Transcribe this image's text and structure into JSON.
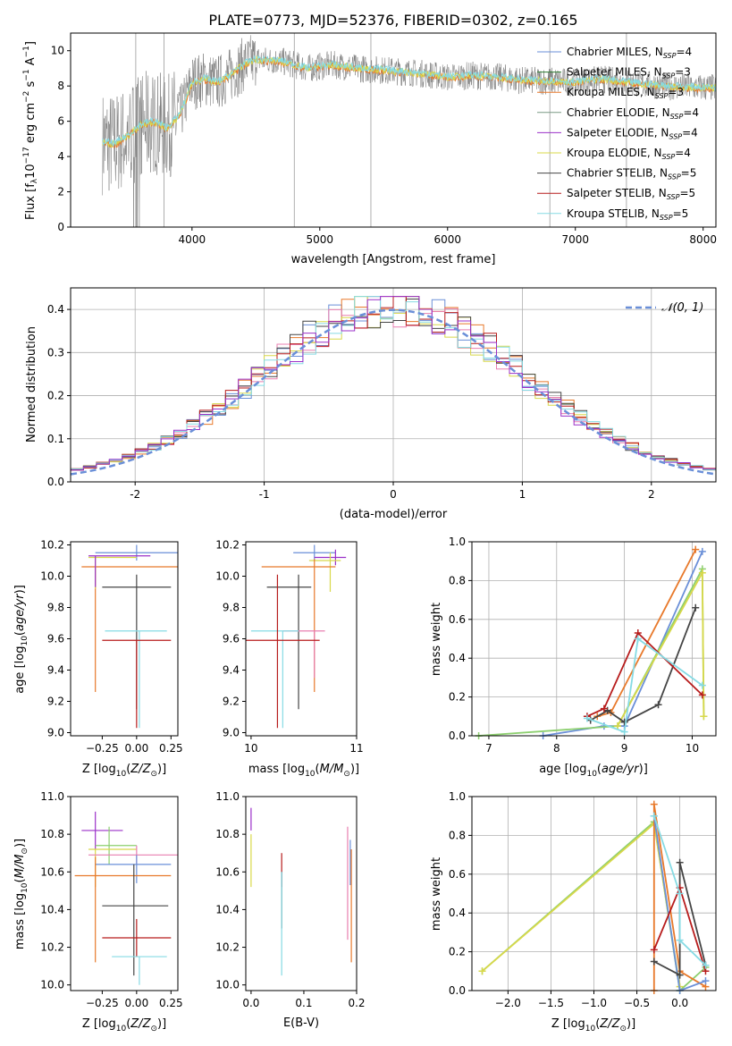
{
  "colors": {
    "chabrier_miles": "#6a8fd8",
    "salpeter_miles": "#2e7d32",
    "kroupa_miles": "#e8792b",
    "chabrier_elodie": "#7b9a86",
    "salpeter_elodie": "#9b30c8",
    "kroupa_elodie": "#d8d84a",
    "chabrier_stelib": "#454545",
    "salpeter_stelib": "#b71c1c",
    "kroupa_stelib": "#86dbe4",
    "data_gray": "#7a7a7a",
    "normal_curve": "#6a8fd8",
    "pink": "#e87fb0",
    "green_light": "#8ccf6e"
  },
  "chart_data": [
    {
      "id": "spectrum",
      "type": "line",
      "title": "PLATE=0773, MJD=52376, FIBERID=0302, z=0.165",
      "xlabel": "wavelength [Angstrom, rest frame]",
      "ylabel": "Flux [f$_\\lambda$10$^{-17}$ erg cm$^{-2}$ s$^{-1}$ A$^{-1}$]",
      "ylabel_parts": [
        "Flux [f",
        "λ",
        "10",
        "−17",
        " erg cm",
        "−2",
        " s",
        "−1",
        " A",
        "−1",
        "]"
      ],
      "xlim": [
        3050,
        8100
      ],
      "ylim": [
        0,
        11
      ],
      "xticks": [
        4000,
        5000,
        6000,
        7000,
        8000
      ],
      "yticks": [
        0,
        2,
        4,
        6,
        8,
        10
      ],
      "continuum": [
        [
          3300,
          4.8
        ],
        [
          3400,
          4.7
        ],
        [
          3500,
          5.2
        ],
        [
          3600,
          5.8
        ],
        [
          3700,
          6.0
        ],
        [
          3800,
          5.6
        ],
        [
          3900,
          6.3
        ],
        [
          3950,
          7.2
        ],
        [
          4000,
          8.2
        ],
        [
          4100,
          8.4
        ],
        [
          4200,
          8.2
        ],
        [
          4300,
          8.6
        ],
        [
          4400,
          9.2
        ],
        [
          4500,
          9.5
        ],
        [
          4700,
          9.4
        ],
        [
          4900,
          9.0
        ],
        [
          5100,
          9.2
        ],
        [
          5300,
          9.0
        ],
        [
          5500,
          8.9
        ],
        [
          5800,
          8.7
        ],
        [
          6000,
          8.5
        ],
        [
          6200,
          8.6
        ],
        [
          6400,
          8.5
        ],
        [
          6600,
          8.3
        ],
        [
          6800,
          8.3
        ],
        [
          7000,
          8.2
        ],
        [
          7200,
          8.4
        ],
        [
          7400,
          8.2
        ],
        [
          7700,
          8.0
        ],
        [
          8000,
          7.9
        ],
        [
          8100,
          7.9
        ]
      ],
      "legend_position": "upper-right",
      "legend": [
        {
          "label": "Chabrier MILES, N",
          "sub": "SSP",
          "suffix": "=4",
          "color_key": "chabrier_miles"
        },
        {
          "label": "Salpeter MILES, N",
          "sub": "SSP",
          "suffix": "=3",
          "color_key": "salpeter_miles"
        },
        {
          "label": "Kroupa MILES, N",
          "sub": "SSP",
          "suffix": "=3",
          "color_key": "kroupa_miles"
        },
        {
          "label": "Chabrier ELODIE, N",
          "sub": "SSP",
          "suffix": "=4",
          "color_key": "chabrier_elodie"
        },
        {
          "label": "Salpeter ELODIE, N",
          "sub": "SSP",
          "suffix": "=4",
          "color_key": "salpeter_elodie"
        },
        {
          "label": "Kroupa ELODIE, N",
          "sub": "SSP",
          "suffix": "=4",
          "color_key": "kroupa_elodie"
        },
        {
          "label": "Chabrier STELIB, N",
          "sub": "SSP",
          "suffix": "=5",
          "color_key": "chabrier_stelib"
        },
        {
          "label": "Salpeter STELIB, N",
          "sub": "SSP",
          "suffix": "=5",
          "color_key": "salpeter_stelib"
        },
        {
          "label": "Kroupa STELIB, N",
          "sub": "SSP",
          "suffix": "=5",
          "color_key": "kroupa_stelib"
        }
      ]
    },
    {
      "id": "residuals",
      "type": "histogram",
      "xlabel": "(data-model)/error",
      "ylabel": "Normed distribution",
      "xlim": [
        -2.5,
        2.5
      ],
      "ylim": [
        0,
        0.45
      ],
      "xticks": [
        -2,
        -1,
        0,
        1,
        2
      ],
      "yticks": [
        0.0,
        0.1,
        0.2,
        0.3,
        0.4
      ],
      "grid": true,
      "bin_width": 0.1,
      "legend_label": "𝒩(0, 1)",
      "legend_position": "upper-right"
    },
    {
      "id": "age_vs_z",
      "type": "errorbar",
      "xlabel_parts": [
        "Z [log",
        "10",
        "(",
        "Z/Z",
        "⊙",
        ")]"
      ],
      "ylabel_parts": [
        "age  [log",
        "10",
        "(",
        "age/yr",
        ")]"
      ],
      "xlim": [
        -0.48,
        0.3
      ],
      "ylim": [
        8.98,
        10.22
      ],
      "xticks": [
        -0.25,
        0.0,
        0.25
      ],
      "xtick_labels": [
        "−0.25",
        "0.00",
        "0.25"
      ],
      "yticks": [
        9.0,
        9.2,
        9.4,
        9.6,
        9.8,
        10.0,
        10.2
      ],
      "points": [
        {
          "color_key": "chabrier_miles",
          "x": 0.0,
          "xerr": [
            0.3,
            0.3
          ],
          "y": 10.15,
          "yerr": [
            0.05,
            0.05
          ]
        },
        {
          "color_key": "kroupa_miles",
          "x": -0.3,
          "xerr": [
            0.1,
            0.6
          ],
          "y": 10.06,
          "yerr": [
            0.8,
            0.0
          ]
        },
        {
          "color_key": "kroupa_elodie",
          "x": -0.3,
          "xerr": [
            0.05,
            0.3
          ],
          "y": 10.12,
          "yerr": [
            0.2,
            0.0
          ]
        },
        {
          "color_key": "salpeter_elodie",
          "x": -0.3,
          "xerr": [
            0.05,
            0.4
          ],
          "y": 10.13,
          "yerr": [
            0.2,
            0.0
          ]
        },
        {
          "color_key": "chabrier_stelib",
          "x": 0.0,
          "xerr": [
            0.25,
            0.25
          ],
          "y": 9.93,
          "yerr": [
            0.78,
            0.08
          ]
        },
        {
          "color_key": "kroupa_stelib",
          "x": 0.02,
          "xerr": [
            0.25,
            0.2
          ],
          "y": 9.65,
          "yerr": [
            0.62,
            0.0
          ]
        },
        {
          "color_key": "salpeter_stelib",
          "x": 0.0,
          "xerr": [
            0.25,
            0.25
          ],
          "y": 9.59,
          "yerr": [
            0.56,
            0.0
          ]
        }
      ]
    },
    {
      "id": "age_vs_mass",
      "type": "errorbar",
      "xlabel_parts": [
        "mass [log",
        "10",
        "(",
        "M/M",
        "⊙",
        ")]"
      ],
      "xlim": [
        9.95,
        11.0
      ],
      "ylim": [
        8.98,
        10.22
      ],
      "xticks": [
        10,
        11
      ],
      "xtick_labels": [
        "10",
        "11"
      ],
      "yticks": [
        9.0,
        9.2,
        9.4,
        9.6,
        9.8,
        10.0,
        10.2
      ],
      "points": [
        {
          "color_key": "chabrier_miles",
          "x": 10.6,
          "xerr": [
            0.2,
            0.2
          ],
          "y": 10.15,
          "yerr": [
            0.05,
            0.05
          ]
        },
        {
          "color_key": "salpeter_elodie",
          "x": 10.8,
          "xerr": [
            0.2,
            0.1
          ],
          "y": 10.12,
          "yerr": [
            0.05,
            0.05
          ]
        },
        {
          "color_key": "kroupa_elodie",
          "x": 10.75,
          "xerr": [
            0.2,
            0.1
          ],
          "y": 10.1,
          "yerr": [
            0.2,
            0.05
          ]
        },
        {
          "color_key": "kroupa_miles",
          "x": 10.6,
          "xerr": [
            0.5,
            0.2
          ],
          "y": 10.06,
          "yerr": [
            0.8,
            0.05
          ]
        },
        {
          "color_key": "chabrier_stelib",
          "x": 10.45,
          "xerr": [
            0.3,
            0.12
          ],
          "y": 9.93,
          "yerr": [
            0.78,
            0.08
          ]
        },
        {
          "color_key": "pink",
          "x": 10.6,
          "xerr": [
            0.3,
            0.1
          ],
          "y": 9.65,
          "yerr": [
            0.3,
            0.0
          ]
        },
        {
          "color_key": "kroupa_stelib",
          "x": 10.3,
          "xerr": [
            0.3,
            0.15
          ],
          "y": 9.65,
          "yerr": [
            0.62,
            0.0
          ]
        },
        {
          "color_key": "salpeter_stelib",
          "x": 10.25,
          "xerr": [
            0.3,
            0.4
          ],
          "y": 9.59,
          "yerr": [
            0.56,
            0.42
          ]
        }
      ]
    },
    {
      "id": "weight_vs_age",
      "type": "line",
      "xlabel_parts": [
        "age  [log",
        "10",
        "(",
        "age/yr",
        ")]"
      ],
      "ylabel": "mass weight",
      "xlim": [
        6.75,
        10.35
      ],
      "ylim": [
        0,
        1.0
      ],
      "xticks": [
        7,
        8,
        9,
        10
      ],
      "yticks": [
        0.0,
        0.2,
        0.4,
        0.6,
        0.8,
        1.0
      ],
      "grid": true,
      "series": [
        {
          "color_key": "chabrier_miles",
          "x": [
            7.8,
            8.7,
            9.0,
            10.15
          ],
          "y": [
            0.0,
            0.05,
            0.05,
            0.95
          ]
        },
        {
          "color_key": "kroupa_miles",
          "x": [
            8.6,
            8.8,
            10.05
          ],
          "y": [
            0.1,
            0.12,
            0.96
          ]
        },
        {
          "color_key": "green_light",
          "x": [
            6.85,
            8.9,
            10.15,
            10.17
          ],
          "y": [
            0.0,
            0.05,
            0.86,
            0.1
          ]
        },
        {
          "color_key": "kroupa_elodie",
          "x": [
            8.9,
            10.15,
            10.17
          ],
          "y": [
            0.05,
            0.84,
            0.1
          ]
        },
        {
          "color_key": "chabrier_stelib",
          "x": [
            8.5,
            8.75,
            9.0,
            9.5,
            10.05
          ],
          "y": [
            0.08,
            0.13,
            0.07,
            0.16,
            0.66
          ]
        },
        {
          "color_key": "salpeter_stelib",
          "x": [
            8.45,
            8.7,
            9.2,
            10.15
          ],
          "y": [
            0.1,
            0.14,
            0.53,
            0.21
          ]
        },
        {
          "color_key": "kroupa_stelib",
          "x": [
            8.45,
            9.0,
            9.2,
            10.15
          ],
          "y": [
            0.09,
            0.02,
            0.5,
            0.26
          ]
        }
      ]
    },
    {
      "id": "mass_vs_z",
      "type": "errorbar",
      "xlabel_parts": [
        "Z [log",
        "10",
        "(",
        "Z/Z",
        "⊙",
        ")]"
      ],
      "ylabel_parts": [
        "mass [log",
        "10",
        "(",
        "M/M",
        "⊙",
        ")]"
      ],
      "xlim": [
        -0.48,
        0.3
      ],
      "ylim": [
        9.97,
        11.0
      ],
      "xticks": [
        -0.25,
        0.0,
        0.25
      ],
      "xtick_labels": [
        "−0.25",
        "0.00",
        "0.25"
      ],
      "yticks": [
        10.0,
        10.2,
        10.4,
        10.6,
        10.8,
        11.0
      ],
      "points": [
        {
          "color_key": "salpeter_elodie",
          "x": -0.3,
          "xerr": [
            0.1,
            0.2
          ],
          "y": 10.82,
          "yerr": [
            0.1,
            0.1
          ]
        },
        {
          "color_key": "green_light",
          "x": -0.2,
          "xerr": [
            0.1,
            0.2
          ],
          "y": 10.74,
          "yerr": [
            0.1,
            0.1
          ]
        },
        {
          "color_key": "kroupa_elodie",
          "x": -0.3,
          "xerr": [
            0.05,
            0.3
          ],
          "y": 10.72,
          "yerr": [
            0.2,
            0.0
          ]
        },
        {
          "color_key": "pink",
          "x": 0.0,
          "xerr": [
            0.35,
            0.3
          ],
          "y": 10.69,
          "yerr": [
            0.05,
            0.05
          ]
        },
        {
          "color_key": "chabrier_miles",
          "x": 0.0,
          "xerr": [
            0.3,
            0.25
          ],
          "y": 10.64,
          "yerr": [
            0.1,
            0.05
          ]
        },
        {
          "color_key": "kroupa_miles",
          "x": -0.3,
          "xerr": [
            0.15,
            0.55
          ],
          "y": 10.58,
          "yerr": [
            0.46,
            0.1
          ]
        },
        {
          "color_key": "chabrier_stelib",
          "x": -0.02,
          "xerr": [
            0.23,
            0.25
          ],
          "y": 10.42,
          "yerr": [
            0.37,
            0.22
          ]
        },
        {
          "color_key": "salpeter_stelib",
          "x": 0.0,
          "xerr": [
            0.25,
            0.25
          ],
          "y": 10.25,
          "yerr": [
            0.1,
            0.1
          ]
        },
        {
          "color_key": "kroupa_stelib",
          "x": 0.02,
          "xerr": [
            0.2,
            0.2
          ],
          "y": 10.15,
          "yerr": [
            0.15,
            0.0
          ]
        }
      ]
    },
    {
      "id": "mass_vs_ebv",
      "type": "errorbar",
      "xlabel": "E(B-V)",
      "xlim": [
        -0.01,
        0.2
      ],
      "ylim": [
        9.97,
        11.0
      ],
      "xticks": [
        0.0,
        0.1,
        0.2
      ],
      "xtick_labels": [
        "0.0",
        "0.1",
        "0.2"
      ],
      "yticks": [
        10.0,
        10.2,
        10.4,
        10.6,
        10.8,
        11.0
      ],
      "points": [
        {
          "color_key": "salpeter_elodie",
          "x": 0.0,
          "y": 10.88,
          "yerr": [
            0.06,
            0.06
          ]
        },
        {
          "color_key": "kroupa_elodie",
          "x": 0.0,
          "y": 10.68,
          "yerr": [
            0.16,
            0.12
          ]
        },
        {
          "color_key": "salpeter_stelib",
          "x": 0.058,
          "y": 10.62,
          "yerr": [
            0.1,
            0.08
          ]
        },
        {
          "color_key": "chabrier_stelib",
          "x": 0.058,
          "y": 10.5,
          "yerr": [
            0.2,
            0.1
          ]
        },
        {
          "color_key": "kroupa_stelib",
          "x": 0.058,
          "y": 10.35,
          "yerr": [
            0.3,
            0.25
          ]
        },
        {
          "color_key": "pink",
          "x": 0.183,
          "y": 10.54,
          "yerr": [
            0.3,
            0.3
          ]
        },
        {
          "color_key": "chabrier_miles",
          "x": 0.188,
          "y": 10.63,
          "yerr": [
            0.1,
            0.14
          ]
        },
        {
          "color_key": "kroupa_miles",
          "x": 0.19,
          "y": 10.42,
          "yerr": [
            0.3,
            0.3
          ]
        }
      ]
    },
    {
      "id": "weight_vs_z",
      "type": "line",
      "xlabel_parts": [
        "Z [log",
        "10",
        "(",
        "Z/Z",
        "⊙",
        ")]"
      ],
      "ylabel": "mass weight",
      "xlim": [
        -2.42,
        0.42
      ],
      "ylim": [
        0,
        1.0
      ],
      "xticks": [
        -2.0,
        -1.5,
        -1.0,
        -0.5,
        0.0
      ],
      "xtick_labels": [
        "−2.0",
        "−1.5",
        "−1.0",
        "−0.5",
        "0.0"
      ],
      "yticks": [
        0.0,
        0.2,
        0.4,
        0.6,
        0.8,
        1.0
      ],
      "grid": true,
      "series": [
        {
          "color_key": "green_light",
          "x": [
            -2.3,
            -0.3,
            0.0,
            0.3
          ],
          "y": [
            0.1,
            0.87,
            0.0,
            0.12
          ]
        },
        {
          "color_key": "kroupa_elodie",
          "x": [
            -2.3,
            -0.3,
            0.0
          ],
          "y": [
            0.1,
            0.86,
            0.02
          ]
        },
        {
          "color_key": "kroupa_miles",
          "x": [
            -0.3,
            -0.3,
            0.0,
            0.3
          ],
          "y": [
            0.0,
            0.96,
            0.1,
            0.02
          ]
        },
        {
          "color_key": "chabrier_miles",
          "x": [
            -0.3,
            0.0,
            0.3
          ],
          "y": [
            0.9,
            0.0,
            0.05
          ]
        },
        {
          "color_key": "chabrier_stelib",
          "x": [
            -0.3,
            0.0,
            0.0,
            0.3
          ],
          "y": [
            0.15,
            0.08,
            0.66,
            0.13
          ]
        },
        {
          "color_key": "salpeter_stelib",
          "x": [
            -0.3,
            0.0,
            0.3
          ],
          "y": [
            0.21,
            0.53,
            0.1
          ]
        },
        {
          "color_key": "kroupa_stelib",
          "x": [
            -0.3,
            0.0,
            0.0,
            0.3
          ],
          "y": [
            0.9,
            0.5,
            0.26,
            0.13
          ]
        }
      ]
    }
  ]
}
